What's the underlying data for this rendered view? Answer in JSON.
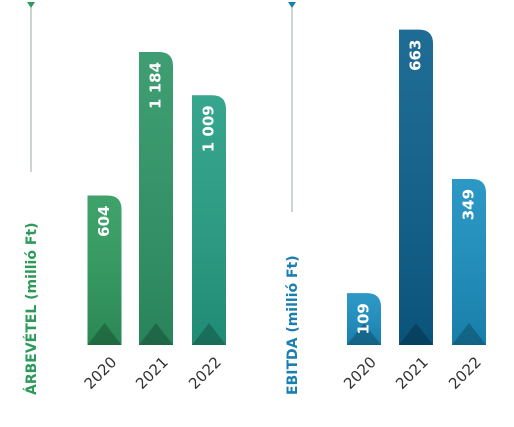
{
  "chart_data": [
    {
      "type": "bar",
      "y_label": "ÁRBEVÉTEL (millió Ft)",
      "label_color": "#2e9a5a",
      "categories": [
        "2020",
        "2021",
        "2022"
      ],
      "values": [
        604,
        1184,
        1009
      ],
      "value_labels": [
        "604",
        "1 184",
        "1 009"
      ],
      "colors": [
        "#2f9a5e",
        "#2e9566",
        "#259e84"
      ],
      "ylim": [
        0,
        1200
      ]
    },
    {
      "type": "bar",
      "y_label": "EBITDA (millió Ft)",
      "label_color": "#1a7fb0",
      "categories": [
        "2020",
        "2021",
        "2022"
      ],
      "values": [
        109,
        663,
        349
      ],
      "value_labels": [
        "109",
        "663",
        "349"
      ],
      "colors": [
        "#1b8fc2",
        "#0b5f8c",
        "#1a8fc0"
      ],
      "ylim": [
        0,
        700
      ]
    }
  ]
}
